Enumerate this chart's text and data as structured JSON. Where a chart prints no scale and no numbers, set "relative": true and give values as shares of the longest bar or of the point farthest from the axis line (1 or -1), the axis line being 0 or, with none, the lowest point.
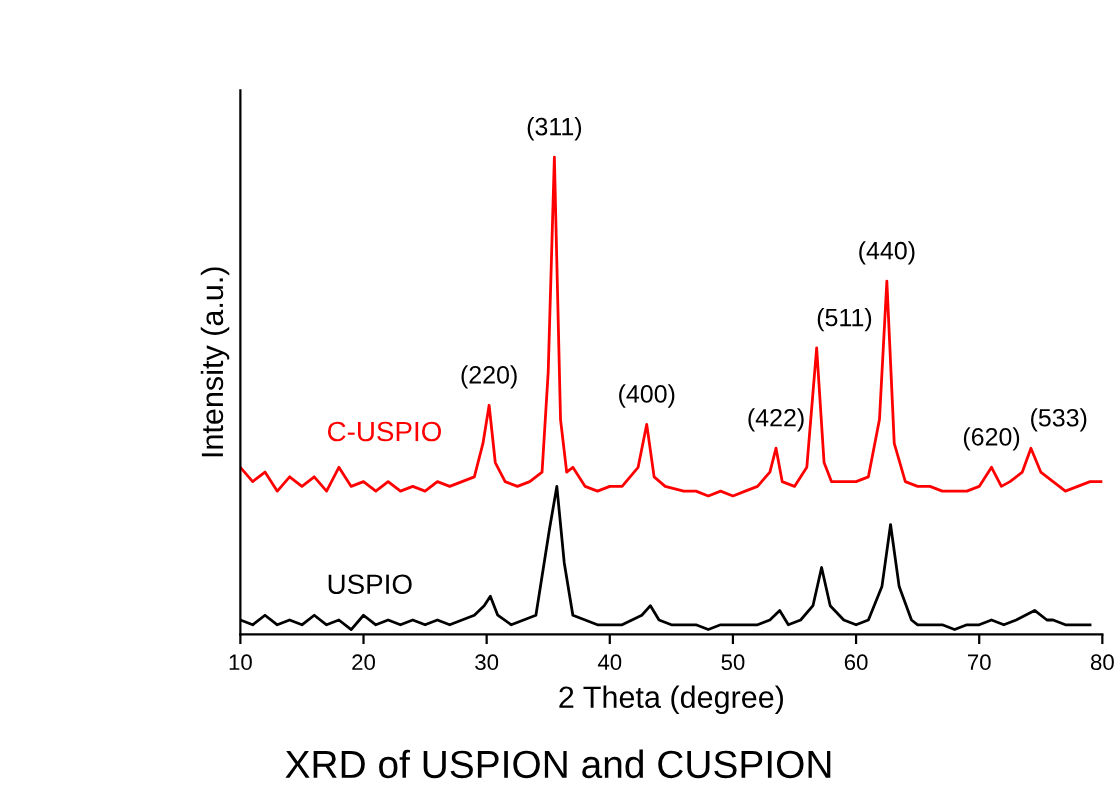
{
  "chart_data": {
    "type": "line",
    "title": "XRD of USPION and CUSPION",
    "xlabel": "2 Theta (degree)",
    "ylabel": "Intensity (a.u.)",
    "relative": true,
    "xlim": [
      10,
      80
    ],
    "xticks": [
      10,
      20,
      30,
      40,
      50,
      60,
      70,
      80
    ],
    "grid": false,
    "legend": false,
    "series": [
      {
        "name": "C-USPIO",
        "color": "#ff0000",
        "x": [
          10,
          11,
          12,
          13,
          14,
          15,
          16,
          17,
          18,
          19,
          20,
          21,
          22,
          23,
          24,
          25,
          26,
          27,
          28,
          29,
          29.7,
          30.2,
          30.7,
          31.5,
          32.5,
          33.5,
          34.5,
          35.0,
          35.5,
          36.0,
          36.5,
          37,
          38,
          39,
          40,
          41,
          42.3,
          43,
          43.6,
          44.5,
          46,
          47,
          48,
          49,
          50,
          51,
          52,
          53,
          53.5,
          54,
          55,
          56,
          56.8,
          57.4,
          58,
          59,
          60,
          61,
          61.9,
          62.5,
          63.1,
          64,
          65,
          66,
          67,
          68,
          69,
          70,
          71,
          71.8,
          72.5,
          73.5,
          74.2,
          75,
          76,
          77,
          78,
          79,
          80
        ],
        "values": [
          0.35,
          0.32,
          0.34,
          0.3,
          0.33,
          0.31,
          0.33,
          0.3,
          0.35,
          0.31,
          0.32,
          0.3,
          0.32,
          0.3,
          0.31,
          0.3,
          0.32,
          0.31,
          0.32,
          0.33,
          0.4,
          0.48,
          0.36,
          0.32,
          0.31,
          0.32,
          0.34,
          0.55,
          1.0,
          0.45,
          0.34,
          0.35,
          0.31,
          0.3,
          0.31,
          0.31,
          0.35,
          0.44,
          0.33,
          0.31,
          0.3,
          0.3,
          0.29,
          0.3,
          0.29,
          0.3,
          0.31,
          0.34,
          0.39,
          0.32,
          0.31,
          0.35,
          0.6,
          0.36,
          0.32,
          0.32,
          0.32,
          0.33,
          0.45,
          0.74,
          0.4,
          0.32,
          0.31,
          0.31,
          0.3,
          0.3,
          0.3,
          0.31,
          0.35,
          0.31,
          0.32,
          0.34,
          0.39,
          0.34,
          0.32,
          0.3,
          0.31,
          0.32,
          0.32
        ]
      },
      {
        "name": "USPIO",
        "color": "#000000",
        "x": [
          10,
          11,
          12,
          13,
          14,
          15,
          16,
          17,
          18,
          19,
          20,
          21,
          22,
          23,
          24,
          25,
          26,
          27,
          28,
          29,
          29.8,
          30.3,
          30.9,
          32,
          33,
          34,
          35.1,
          35.7,
          36.3,
          37,
          38,
          39,
          40,
          41,
          42.6,
          43.3,
          44,
          45,
          46,
          47,
          48,
          49,
          50,
          51,
          52,
          53,
          53.8,
          54.5,
          55.5,
          56.5,
          57.2,
          57.9,
          59,
          60,
          61,
          62.1,
          62.8,
          63.5,
          64.5,
          65,
          66,
          67,
          68,
          69,
          70,
          71,
          72,
          73,
          74.5,
          75.5,
          76,
          77,
          78,
          79
        ],
        "values": [
          0.03,
          0.02,
          0.04,
          0.02,
          0.03,
          0.02,
          0.04,
          0.02,
          0.03,
          0.01,
          0.04,
          0.02,
          0.03,
          0.02,
          0.03,
          0.02,
          0.03,
          0.02,
          0.03,
          0.04,
          0.06,
          0.08,
          0.04,
          0.02,
          0.03,
          0.04,
          0.22,
          0.31,
          0.15,
          0.04,
          0.03,
          0.02,
          0.02,
          0.02,
          0.04,
          0.06,
          0.03,
          0.02,
          0.02,
          0.02,
          0.01,
          0.02,
          0.02,
          0.02,
          0.02,
          0.03,
          0.05,
          0.02,
          0.03,
          0.06,
          0.14,
          0.06,
          0.03,
          0.02,
          0.03,
          0.1,
          0.23,
          0.1,
          0.03,
          0.02,
          0.02,
          0.02,
          0.01,
          0.02,
          0.02,
          0.03,
          0.02,
          0.03,
          0.05,
          0.03,
          0.03,
          0.02,
          0.02,
          0.02
        ]
      }
    ],
    "annotations": [
      {
        "text": "(220)",
        "x": 30.2,
        "y": 0.48
      },
      {
        "text": "(311)",
        "x": 35.5,
        "y": 1.0
      },
      {
        "text": "(400)",
        "x": 43,
        "y": 0.44
      },
      {
        "text": "(422)",
        "x": 53.5,
        "y": 0.39
      },
      {
        "text": "(511)",
        "x": 56.8,
        "y": 0.6
      },
      {
        "text": "(440)",
        "x": 62.5,
        "y": 0.74
      },
      {
        "text": "(620)",
        "x": 71,
        "y": 0.35
      },
      {
        "text": "(533)",
        "x": 74.2,
        "y": 0.39
      }
    ]
  }
}
